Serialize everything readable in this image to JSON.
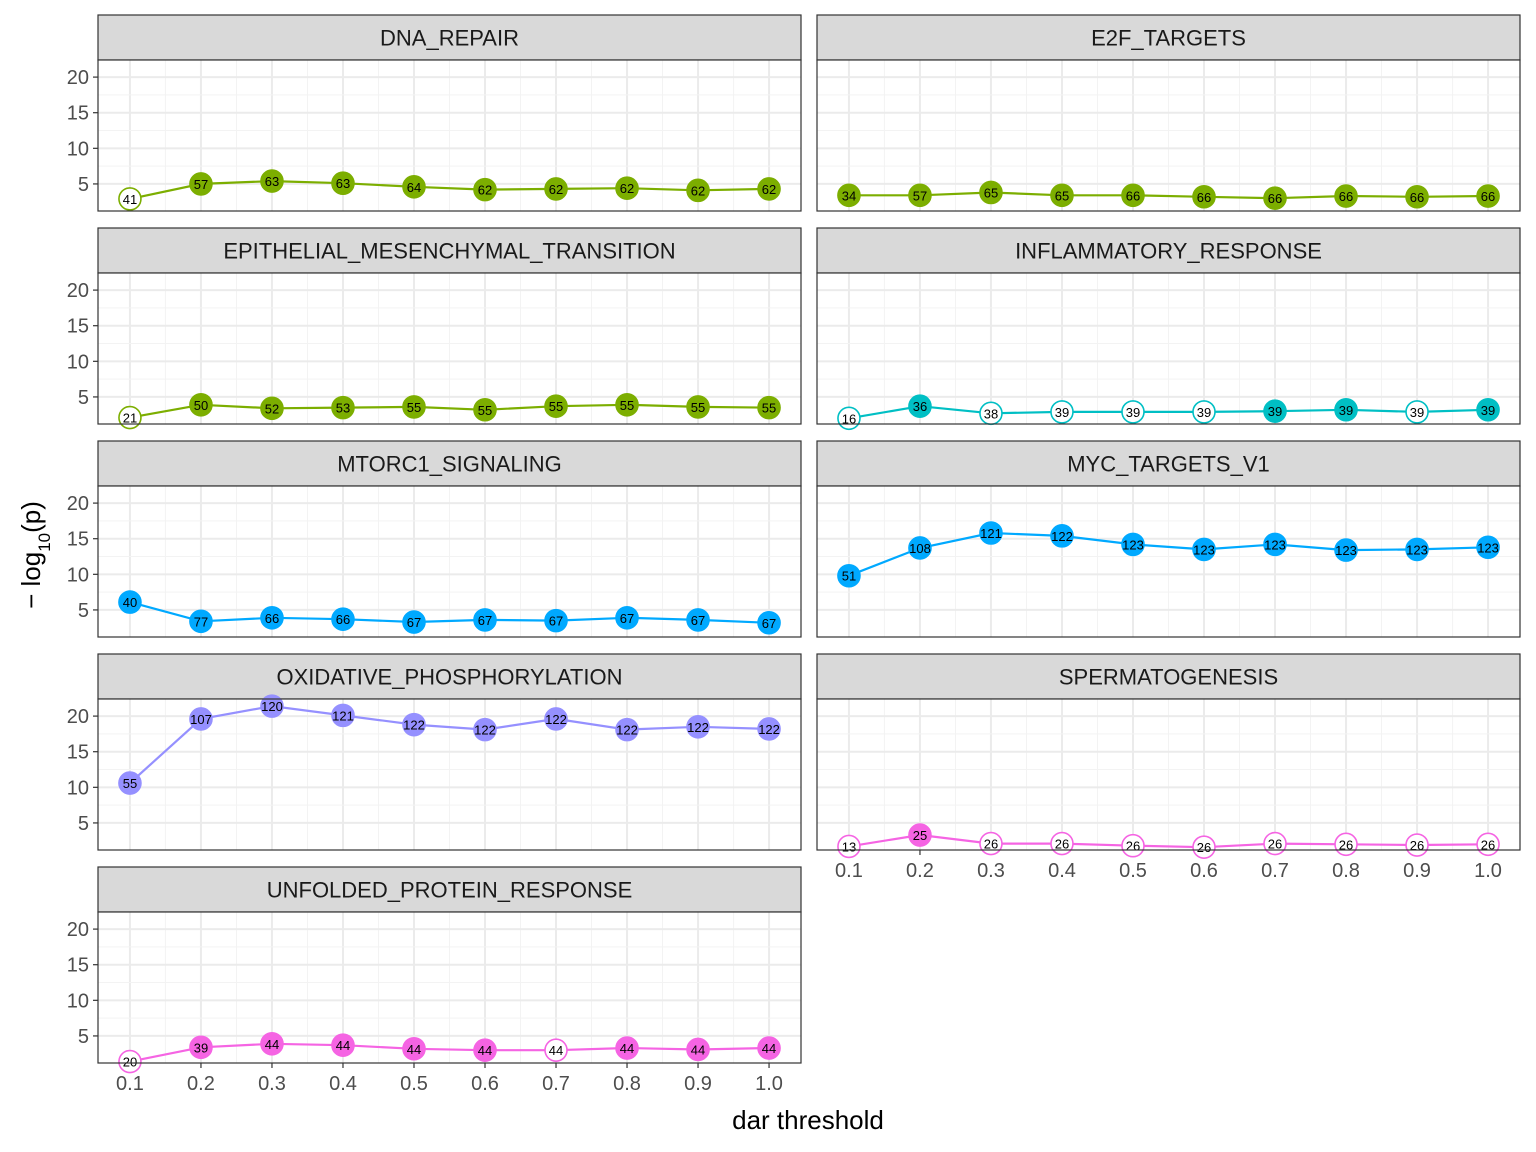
{
  "chart_data": {
    "type": "line",
    "xlabel": "dar threshold",
    "ylabel_prefix": "− log",
    "ylabel_sub": "10",
    "ylabel_suffix": "(p)",
    "x": [
      0.1,
      0.2,
      0.3,
      0.4,
      0.5,
      0.6,
      0.7,
      0.8,
      0.9,
      1.0
    ],
    "x_tick_labels": [
      "0.1",
      "0.2",
      "0.3",
      "0.4",
      "0.5",
      "0.6",
      "0.7",
      "0.8",
      "0.9",
      "1.0"
    ],
    "y_ticks": [
      5,
      10,
      15,
      20
    ],
    "y_tick_labels": [
      "5",
      "10",
      "15",
      "20"
    ],
    "ylim": [
      1.2,
      22.4
    ],
    "xlim": [
      0.055,
      1.045
    ],
    "grid": true,
    "facets": [
      {
        "name": "DNA_REPAIR",
        "color": "#7CAE00",
        "y": [
          2.9,
          5.0,
          5.4,
          5.1,
          4.6,
          4.2,
          4.3,
          4.4,
          4.1,
          4.3
        ],
        "labels": [
          "41",
          "57",
          "63",
          "63",
          "64",
          "62",
          "62",
          "62",
          "62",
          "62"
        ],
        "filled": [
          false,
          true,
          true,
          true,
          true,
          true,
          true,
          true,
          true,
          true
        ]
      },
      {
        "name": "E2F_TARGETS",
        "color": "#7CAE00",
        "y": [
          3.4,
          3.4,
          3.8,
          3.4,
          3.4,
          3.2,
          3.0,
          3.3,
          3.2,
          3.3
        ],
        "labels": [
          "34",
          "57",
          "65",
          "65",
          "66",
          "66",
          "66",
          "66",
          "66",
          "66"
        ],
        "filled": [
          true,
          true,
          true,
          true,
          true,
          true,
          true,
          true,
          true,
          true
        ]
      },
      {
        "name": "EPITHELIAL_MESENCHYMAL_TRANSITION",
        "color": "#7CAE00",
        "y": [
          2.1,
          3.9,
          3.4,
          3.5,
          3.6,
          3.2,
          3.7,
          3.9,
          3.6,
          3.5
        ],
        "labels": [
          "21",
          "50",
          "52",
          "53",
          "55",
          "55",
          "55",
          "55",
          "55",
          "55"
        ],
        "filled": [
          false,
          true,
          true,
          true,
          true,
          true,
          true,
          true,
          true,
          true
        ]
      },
      {
        "name": "INFLAMMATORY_RESPONSE",
        "color": "#00BFC4",
        "y": [
          2.0,
          3.7,
          2.7,
          2.9,
          2.9,
          2.9,
          3.0,
          3.2,
          2.9,
          3.2
        ],
        "labels": [
          "16",
          "36",
          "38",
          "39",
          "39",
          "39",
          "39",
          "39",
          "39",
          "39"
        ],
        "filled": [
          false,
          true,
          false,
          false,
          false,
          false,
          true,
          true,
          false,
          true
        ]
      },
      {
        "name": "MTORC1_SIGNALING",
        "color": "#00A9FF",
        "y": [
          6.1,
          3.4,
          3.9,
          3.7,
          3.3,
          3.6,
          3.5,
          3.9,
          3.6,
          3.2
        ],
        "labels": [
          "40",
          "77",
          "66",
          "66",
          "67",
          "67",
          "67",
          "67",
          "67",
          "67"
        ],
        "filled": [
          true,
          true,
          true,
          true,
          true,
          true,
          true,
          true,
          true,
          true
        ]
      },
      {
        "name": "MYC_TARGETS_V1",
        "color": "#00A9FF",
        "y": [
          9.8,
          13.7,
          15.8,
          15.4,
          14.2,
          13.5,
          14.2,
          13.4,
          13.5,
          13.8
        ],
        "labels": [
          "51",
          "108",
          "121",
          "122",
          "123",
          "123",
          "123",
          "123",
          "123",
          "123"
        ],
        "filled": [
          true,
          true,
          true,
          true,
          true,
          true,
          true,
          true,
          true,
          true
        ]
      },
      {
        "name": "OXIDATIVE_PHOSPHORYLATION",
        "color": "#9590FF",
        "y": [
          10.6,
          19.6,
          21.4,
          20.1,
          18.8,
          18.1,
          19.6,
          18.1,
          18.5,
          18.2
        ],
        "labels": [
          "55",
          "107",
          "120",
          "121",
          "122",
          "122",
          "122",
          "122",
          "122",
          "122"
        ],
        "filled": [
          true,
          true,
          true,
          true,
          true,
          true,
          true,
          true,
          true,
          true
        ]
      },
      {
        "name": "SPERMATOGENESIS",
        "color": "#F564E3",
        "y": [
          1.7,
          3.3,
          2.1,
          2.1,
          1.8,
          1.6,
          2.1,
          2.0,
          1.9,
          2.0
        ],
        "labels": [
          "13",
          "25",
          "26",
          "26",
          "26",
          "26",
          "26",
          "26",
          "26",
          "26"
        ],
        "filled": [
          false,
          true,
          false,
          false,
          false,
          false,
          false,
          false,
          false,
          false
        ]
      },
      {
        "name": "UNFOLDED_PROTEIN_RESPONSE",
        "color": "#F564E3",
        "y": [
          1.4,
          3.4,
          3.9,
          3.7,
          3.2,
          3.0,
          3.0,
          3.3,
          3.1,
          3.3
        ],
        "labels": [
          "20",
          "39",
          "44",
          "44",
          "44",
          "44",
          "44",
          "44",
          "44",
          "44"
        ],
        "filled": [
          false,
          true,
          true,
          true,
          true,
          true,
          false,
          true,
          true,
          true
        ]
      }
    ]
  }
}
